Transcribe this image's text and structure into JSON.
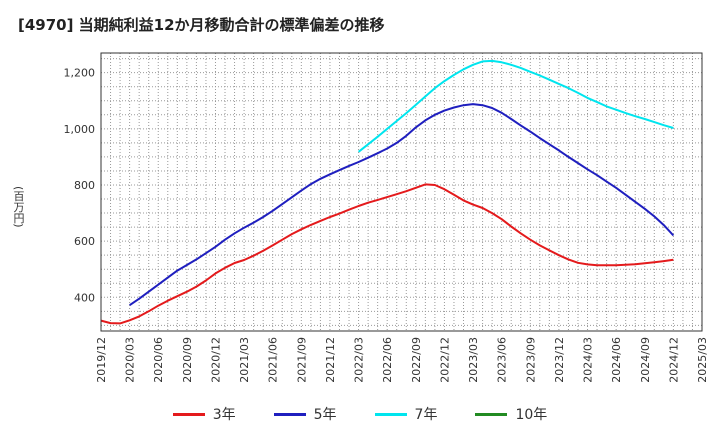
{
  "title": "[4970]  当期純利益12か月移動合計の標準偏差の推移",
  "ylabel": "(百万円)",
  "chart_data": {
    "type": "line",
    "title": "[4970]  当期純利益12か月移動合計の標準偏差の推移",
    "ylabel": "(百万円)",
    "xlabel": "",
    "ylim": [
      280,
      1270
    ],
    "xlim": [
      "2019/12",
      "2025/03"
    ],
    "yticks": [
      400,
      600,
      800,
      1000,
      1200
    ],
    "ytick_labels": [
      "400",
      "600",
      "800",
      "1,000",
      "1,200"
    ],
    "xtick_labels": [
      "2019/12",
      "2020/03",
      "2020/06",
      "2020/09",
      "2020/12",
      "2021/03",
      "2021/06",
      "2021/09",
      "2021/12",
      "2022/03",
      "2022/06",
      "2022/09",
      "2022/12",
      "2023/03",
      "2023/06",
      "2023/09",
      "2023/12",
      "2024/03",
      "2024/06",
      "2024/09",
      "2024/12",
      "2025/03"
    ],
    "grid": true,
    "legend_position": "bottom",
    "series": [
      {
        "name": "3年",
        "color": "#e41a1c",
        "x": [
          "2019/12",
          "2020/01",
          "2020/02",
          "2020/03",
          "2020/04",
          "2020/05",
          "2020/06",
          "2020/07",
          "2020/08",
          "2020/09",
          "2020/10",
          "2020/11",
          "2020/12",
          "2021/01",
          "2021/02",
          "2021/03",
          "2021/04",
          "2021/05",
          "2021/06",
          "2021/07",
          "2021/08",
          "2021/09",
          "2021/10",
          "2021/11",
          "2021/12",
          "2022/01",
          "2022/02",
          "2022/03",
          "2022/04",
          "2022/05",
          "2022/06",
          "2022/07",
          "2022/08",
          "2022/09",
          "2022/10",
          "2022/11",
          "2022/12",
          "2023/01",
          "2023/02",
          "2023/03",
          "2023/04",
          "2023/05",
          "2023/06",
          "2023/07",
          "2023/08",
          "2023/09",
          "2023/10",
          "2023/11",
          "2023/12",
          "2024/01",
          "2024/02",
          "2024/03",
          "2024/04",
          "2024/05",
          "2024/06",
          "2024/07",
          "2024/08",
          "2024/09",
          "2024/10",
          "2024/11",
          "2024/12"
        ],
        "values": [
          317,
          308,
          307,
          318,
          332,
          350,
          370,
          388,
          404,
          420,
          438,
          460,
          485,
          505,
          522,
          533,
          548,
          566,
          585,
          605,
          625,
          642,
          658,
          672,
          686,
          698,
          712,
          725,
          737,
          747,
          757,
          767,
          778,
          790,
          802,
          800,
          785,
          765,
          745,
          730,
          718,
          700,
          678,
          652,
          628,
          605,
          585,
          567,
          550,
          535,
          523,
          517,
          514,
          514,
          514,
          516,
          518,
          521,
          525,
          529,
          534
        ]
      },
      {
        "name": "5年",
        "color": "#1f1fbf",
        "x": [
          "2020/03",
          "2020/04",
          "2020/05",
          "2020/06",
          "2020/07",
          "2020/08",
          "2020/09",
          "2020/10",
          "2020/11",
          "2020/12",
          "2021/01",
          "2021/02",
          "2021/03",
          "2021/04",
          "2021/05",
          "2021/06",
          "2021/07",
          "2021/08",
          "2021/09",
          "2021/10",
          "2021/11",
          "2021/12",
          "2022/01",
          "2022/02",
          "2022/03",
          "2022/04",
          "2022/05",
          "2022/06",
          "2022/07",
          "2022/08",
          "2022/09",
          "2022/10",
          "2022/11",
          "2022/12",
          "2023/01",
          "2023/02",
          "2023/03",
          "2023/04",
          "2023/05",
          "2023/06",
          "2023/07",
          "2023/08",
          "2023/09",
          "2023/10",
          "2023/11",
          "2023/12",
          "2024/01",
          "2024/02",
          "2024/03",
          "2024/04",
          "2024/05",
          "2024/06",
          "2024/07",
          "2024/08",
          "2024/09",
          "2024/10",
          "2024/11",
          "2024/12"
        ],
        "values": [
          372,
          395,
          420,
          445,
          470,
          495,
          515,
          535,
          557,
          580,
          605,
          628,
          648,
          666,
          686,
          708,
          732,
          756,
          780,
          803,
          822,
          838,
          853,
          868,
          882,
          897,
          913,
          930,
          950,
          975,
          1005,
          1030,
          1050,
          1065,
          1076,
          1084,
          1088,
          1084,
          1074,
          1057,
          1035,
          1012,
          990,
          967,
          945,
          923,
          900,
          878,
          856,
          835,
          812,
          790,
          765,
          740,
          715,
          688,
          657,
          620
        ]
      },
      {
        "name": "7年",
        "color": "#00e5ee",
        "x": [
          "2022/03",
          "2022/04",
          "2022/05",
          "2022/06",
          "2022/07",
          "2022/08",
          "2022/09",
          "2022/10",
          "2022/11",
          "2022/12",
          "2023/01",
          "2023/02",
          "2023/03",
          "2023/04",
          "2023/05",
          "2023/06",
          "2023/07",
          "2023/08",
          "2023/09",
          "2023/10",
          "2023/11",
          "2023/12",
          "2024/01",
          "2024/02",
          "2024/03",
          "2024/04",
          "2024/05",
          "2024/06",
          "2024/07",
          "2024/08",
          "2024/09",
          "2024/10",
          "2024/11",
          "2024/12"
        ],
        "values": [
          918,
          945,
          972,
          1000,
          1028,
          1056,
          1085,
          1115,
          1145,
          1170,
          1192,
          1212,
          1228,
          1240,
          1242,
          1237,
          1228,
          1217,
          1203,
          1190,
          1175,
          1160,
          1145,
          1128,
          1110,
          1095,
          1080,
          1068,
          1056,
          1045,
          1035,
          1024,
          1013,
          1003
        ]
      },
      {
        "name": "10年",
        "color": "#228b22",
        "x": [],
        "values": []
      }
    ]
  }
}
